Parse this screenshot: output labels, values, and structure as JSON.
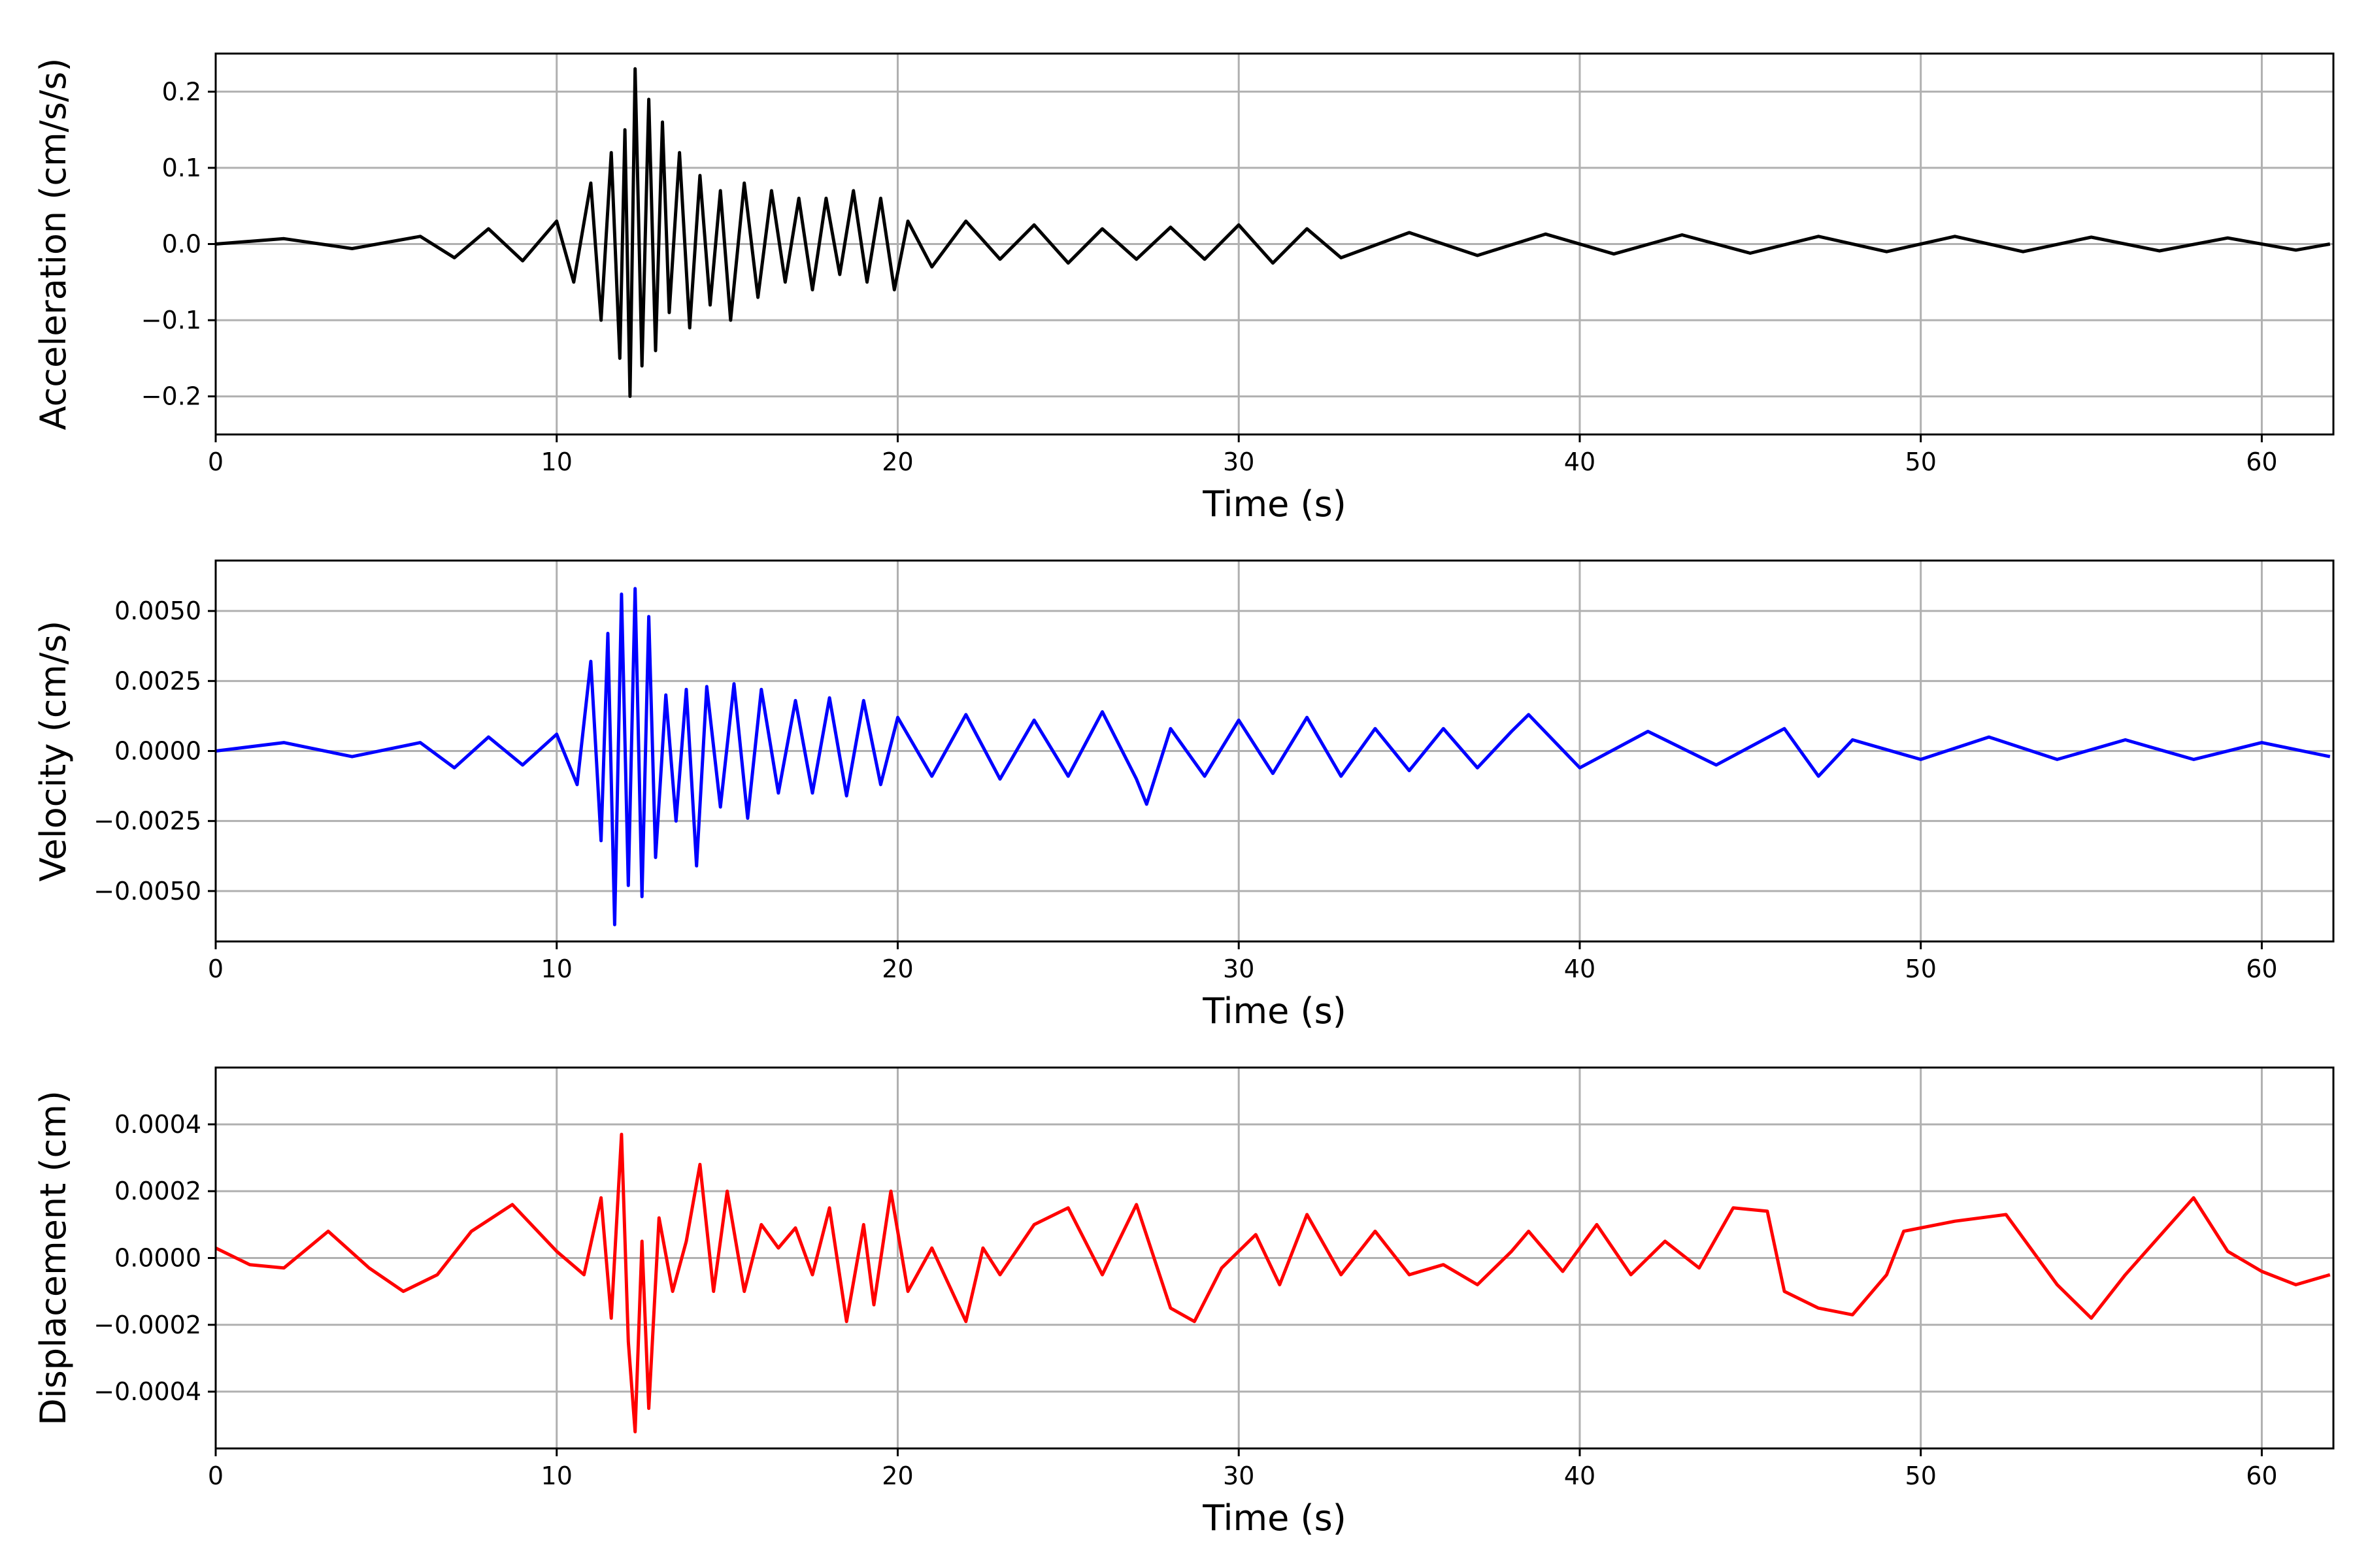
{
  "chart_data": [
    {
      "type": "line",
      "xlabel": "Time (s)",
      "ylabel": "Acceleration (cm/s/s)",
      "xlim": [
        0,
        62.1
      ],
      "ylim": [
        -0.25,
        0.25
      ],
      "xticks": [
        0,
        10,
        20,
        30,
        40,
        50,
        60
      ],
      "xtick_labels": [
        "0",
        "10",
        "20",
        "30",
        "40",
        "50",
        "60"
      ],
      "yticks": [
        0.2,
        0.1,
        0.0,
        -0.1,
        -0.2
      ],
      "ytick_labels": [
        "0.2",
        "0.1",
        "0.0",
        "−0.1",
        "−0.2"
      ],
      "grid": true,
      "color": "#000000",
      "x": [
        0,
        2,
        4,
        6,
        7,
        8,
        9,
        10,
        10.5,
        11,
        11.3,
        11.6,
        11.85,
        12.0,
        12.15,
        12.3,
        12.5,
        12.7,
        12.9,
        13.1,
        13.3,
        13.6,
        13.9,
        14.2,
        14.5,
        14.8,
        15.1,
        15.5,
        15.9,
        16.3,
        16.7,
        17.1,
        17.5,
        17.9,
        18.3,
        18.7,
        19.1,
        19.5,
        19.9,
        20.3,
        21,
        22,
        23,
        24,
        25,
        26,
        27,
        28,
        29,
        30,
        31,
        32,
        33,
        35,
        37,
        39,
        41,
        43,
        45,
        47,
        49,
        51,
        53,
        55,
        57,
        59,
        61,
        62
      ],
      "y": [
        0.0,
        0.007,
        -0.006,
        0.01,
        -0.018,
        0.02,
        -0.022,
        0.03,
        -0.05,
        0.08,
        -0.1,
        0.12,
        -0.15,
        0.15,
        -0.2,
        0.23,
        -0.16,
        0.19,
        -0.14,
        0.16,
        -0.09,
        0.12,
        -0.11,
        0.09,
        -0.08,
        0.07,
        -0.1,
        0.08,
        -0.07,
        0.07,
        -0.05,
        0.06,
        -0.06,
        0.06,
        -0.04,
        0.07,
        -0.05,
        0.06,
        -0.06,
        0.03,
        -0.03,
        0.03,
        -0.02,
        0.025,
        -0.025,
        0.02,
        -0.02,
        0.022,
        -0.02,
        0.025,
        -0.025,
        0.02,
        -0.018,
        0.015,
        -0.015,
        0.013,
        -0.013,
        0.012,
        -0.012,
        0.01,
        -0.01,
        0.01,
        -0.01,
        0.009,
        -0.009,
        0.008,
        -0.008,
        0.0
      ]
    },
    {
      "type": "line",
      "xlabel": "Time (s)",
      "ylabel": "Velocity (cm/s)",
      "xlim": [
        0,
        62.1
      ],
      "ylim": [
        -0.0068,
        0.0068
      ],
      "xticks": [
        0,
        10,
        20,
        30,
        40,
        50,
        60
      ],
      "xtick_labels": [
        "0",
        "10",
        "20",
        "30",
        "40",
        "50",
        "60"
      ],
      "yticks": [
        0.005,
        0.0025,
        0.0,
        -0.0025,
        -0.005
      ],
      "ytick_labels": [
        "0.0050",
        "0.0025",
        "0.0000",
        "−0.0025",
        "−0.0050"
      ],
      "grid": true,
      "color": "#0000ff",
      "x": [
        0,
        2,
        4,
        6,
        7,
        8,
        9,
        10,
        10.6,
        11.0,
        11.3,
        11.5,
        11.7,
        11.9,
        12.1,
        12.3,
        12.5,
        12.7,
        12.9,
        13.2,
        13.5,
        13.8,
        14.1,
        14.4,
        14.8,
        15.2,
        15.6,
        16.0,
        16.5,
        17.0,
        17.5,
        18.0,
        18.5,
        19.0,
        19.5,
        20.0,
        21,
        22,
        23,
        24,
        25,
        26,
        27,
        27.3,
        28,
        29,
        30,
        31,
        32,
        33,
        34,
        35,
        36,
        37,
        38,
        38.5,
        40,
        42,
        44,
        46,
        47,
        48,
        50,
        52,
        54,
        56,
        58,
        60,
        62
      ],
      "y": [
        0.0,
        0.0003,
        -0.0002,
        0.0003,
        -0.0006,
        0.0005,
        -0.0005,
        0.0006,
        -0.0012,
        0.0032,
        -0.0032,
        0.0042,
        -0.0062,
        0.0056,
        -0.0048,
        0.0058,
        -0.0052,
        0.0048,
        -0.0038,
        0.002,
        -0.0025,
        0.0022,
        -0.0041,
        0.0023,
        -0.002,
        0.0024,
        -0.0024,
        0.0022,
        -0.0015,
        0.0018,
        -0.0015,
        0.0019,
        -0.0016,
        0.0018,
        -0.0012,
        0.0012,
        -0.0009,
        0.0013,
        -0.001,
        0.0011,
        -0.0009,
        0.0014,
        -0.001,
        -0.0019,
        0.0008,
        -0.0009,
        0.0011,
        -0.0008,
        0.0012,
        -0.0009,
        0.0008,
        -0.0007,
        0.0008,
        -0.0006,
        0.0007,
        0.0013,
        -0.0006,
        0.0007,
        -0.0005,
        0.0008,
        -0.0009,
        0.0004,
        -0.0003,
        0.0005,
        -0.0003,
        0.0004,
        -0.0003,
        0.0003,
        -0.0002
      ]
    },
    {
      "type": "line",
      "xlabel": "Time (s)",
      "ylabel": "Displacement (cm)",
      "xlim": [
        0,
        62.1
      ],
      "ylim": [
        -0.00057,
        0.00057
      ],
      "xticks": [
        0,
        10,
        20,
        30,
        40,
        50,
        60
      ],
      "xtick_labels": [
        "0",
        "10",
        "20",
        "30",
        "40",
        "50",
        "60"
      ],
      "yticks": [
        0.0004,
        0.0002,
        0.0,
        -0.0002,
        -0.0004
      ],
      "ytick_labels": [
        "0.0004",
        "0.0002",
        "0.0000",
        "−0.0002",
        "−0.0004"
      ],
      "grid": true,
      "color": "#ff0000",
      "x": [
        0,
        1,
        2,
        3.3,
        4.5,
        5.5,
        6.5,
        7.5,
        8.7,
        10,
        10.8,
        11.3,
        11.6,
        11.9,
        12.1,
        12.3,
        12.5,
        12.7,
        13.0,
        13.4,
        13.8,
        14.2,
        14.6,
        15.0,
        15.5,
        16.0,
        16.5,
        17.0,
        17.5,
        18.0,
        18.5,
        19.0,
        19.3,
        19.8,
        20.3,
        21,
        22,
        22.5,
        23,
        24,
        25,
        26,
        27,
        28,
        28.7,
        29.5,
        30.5,
        31.2,
        32,
        33,
        34,
        35,
        36,
        37,
        38,
        38.5,
        39.5,
        40.5,
        41.5,
        42.5,
        43.5,
        44.5,
        45.5,
        46,
        47,
        48,
        49,
        49.5,
        51,
        52.5,
        54,
        55,
        56,
        58,
        59,
        60,
        61,
        62
      ],
      "y": [
        3e-05,
        -2e-05,
        -3e-05,
        8e-05,
        -3e-05,
        -0.0001,
        -5e-05,
        8e-05,
        0.00016,
        2e-05,
        -5e-05,
        0.00018,
        -0.00018,
        0.00037,
        -0.00025,
        -0.00052,
        5e-05,
        -0.00045,
        0.00012,
        -0.0001,
        5e-05,
        0.00028,
        -0.0001,
        0.0002,
        -0.0001,
        0.0001,
        3e-05,
        9e-05,
        -5e-05,
        0.00015,
        -0.00019,
        0.0001,
        -0.00014,
        0.0002,
        -0.0001,
        3e-05,
        -0.00019,
        3e-05,
        -5e-05,
        0.0001,
        0.00015,
        -5e-05,
        0.00016,
        -0.00015,
        -0.00019,
        -3e-05,
        7e-05,
        -8e-05,
        0.00013,
        -5e-05,
        8e-05,
        -5e-05,
        -2e-05,
        -8e-05,
        2e-05,
        8e-05,
        -4e-05,
        0.0001,
        -5e-05,
        5e-05,
        -3e-05,
        0.00015,
        0.00014,
        -0.0001,
        -0.00015,
        -0.00017,
        -5e-05,
        8e-05,
        0.00011,
        0.00013,
        -8e-05,
        -0.00018,
        -5e-05,
        0.00018,
        2e-05,
        -4e-05,
        -8e-05,
        -5e-05
      ]
    }
  ]
}
